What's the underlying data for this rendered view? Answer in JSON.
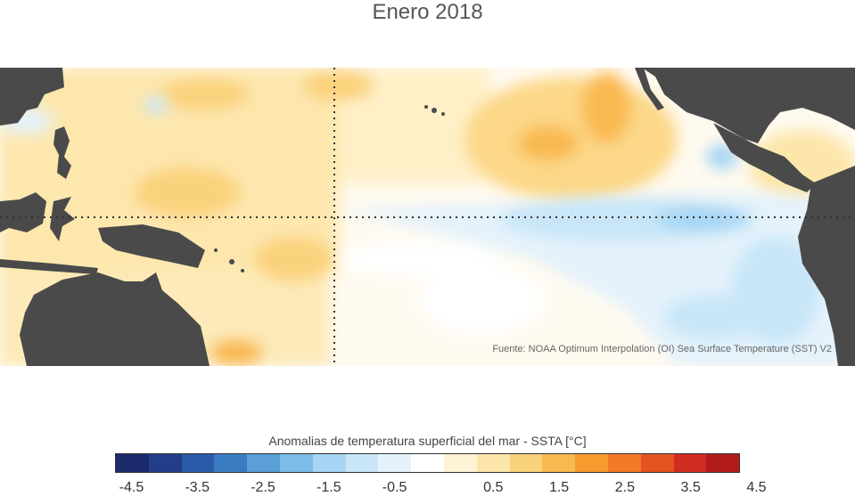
{
  "title": "Enero 2018",
  "source": "Fuente: NOAA Optimum Interpolation (OI) Sea Surface Temperature (SST) V2",
  "map": {
    "region": "Pacífico tropical",
    "reference_lines": [
      "equator",
      "dateline-180"
    ],
    "colors": {
      "land": "#4a4a4a",
      "ocean_neutral": "#ffffff",
      "gridline": "#333333"
    }
  },
  "colorbar": {
    "title": "Anomalias de temperatura superficial del mar - SSTA  [°C]",
    "colors": [
      "#1c2b6b",
      "#223e8a",
      "#2b5aa8",
      "#3a7cc2",
      "#5a9fd8",
      "#7cbde9",
      "#a6d6f4",
      "#c8e6f8",
      "#e4f2fb",
      "#ffffff",
      "#fff3d6",
      "#fde6aa",
      "#fbd27c",
      "#f9b951",
      "#f79b2e",
      "#f27a26",
      "#e45322",
      "#d02c22",
      "#b31b1b"
    ],
    "tick_labels": [
      "-4.5",
      "-3.5",
      "-2.5",
      "-1.5",
      "-0.5",
      "0.5",
      "1.5",
      "2.5",
      "3.5",
      "4.5"
    ]
  }
}
